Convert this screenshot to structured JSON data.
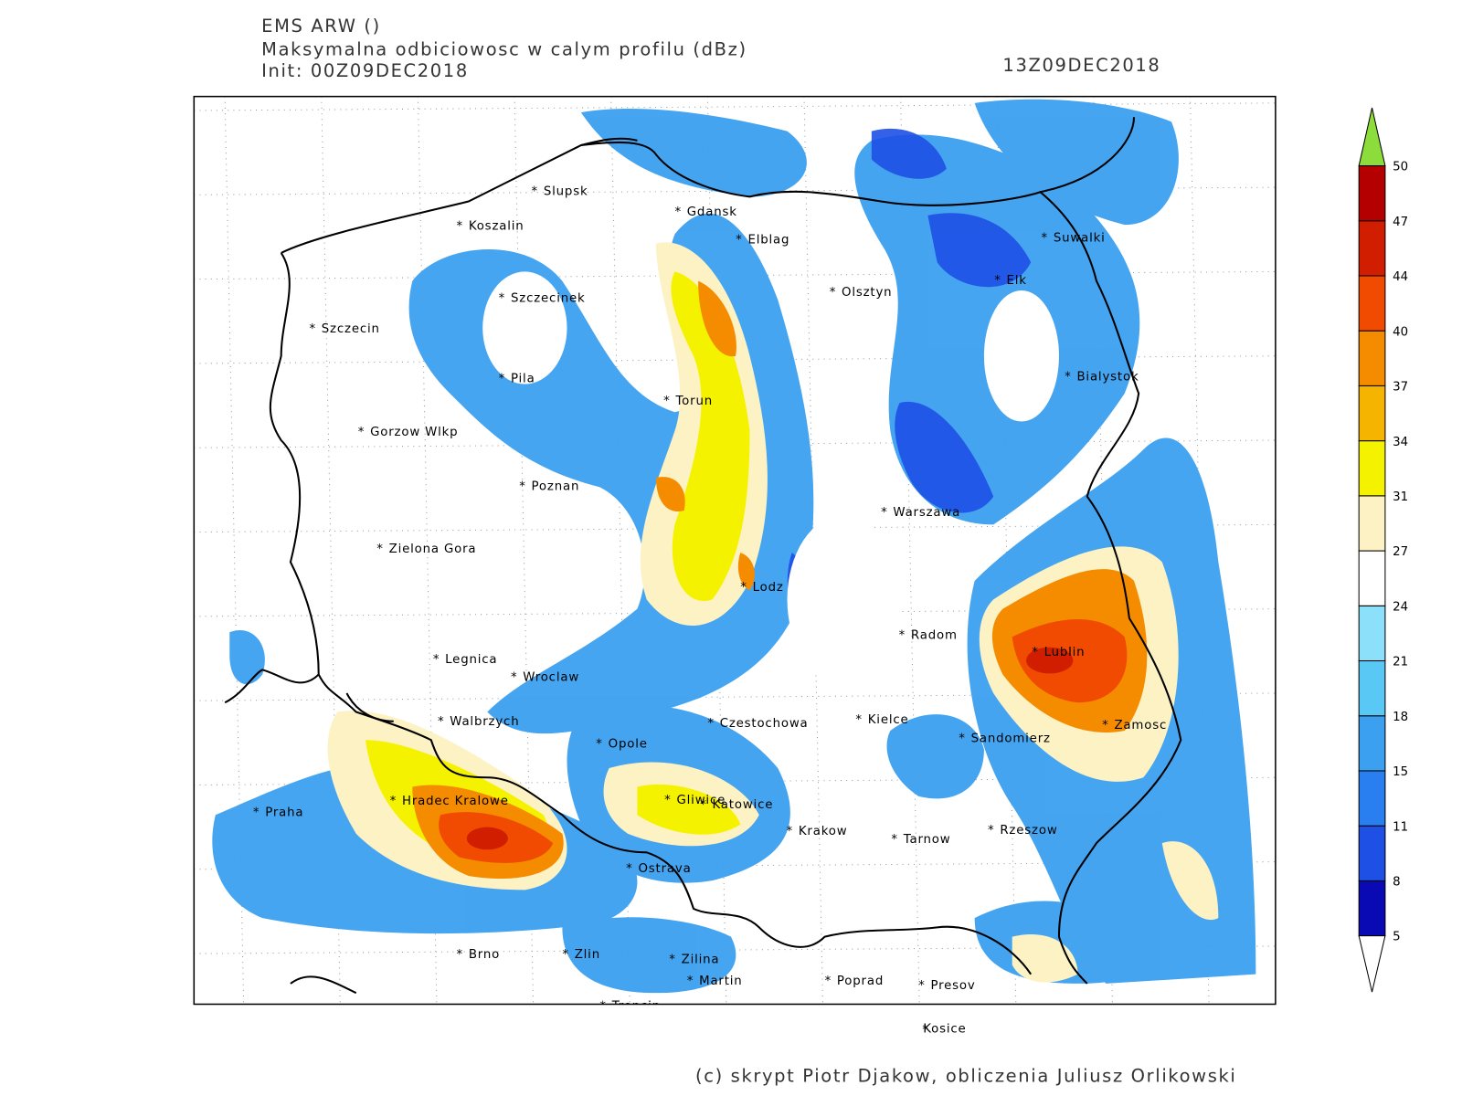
{
  "header": {
    "model": "EMS ARW ()",
    "field": "Maksymalna odbiciowosc w calym profilu (dBz)",
    "init": "Init: 00Z09DEC2018",
    "valid": "13Z09DEC2018"
  },
  "cities": [
    "Slupsk",
    "Koszalin",
    "Gdansk",
    "Elblag",
    "Szczecinek",
    "Olsztyn",
    "Suwalki",
    "Elk",
    "Szczecin",
    "Pila",
    "Torun",
    "Bialystok",
    "Gorzow Wlkp",
    "Poznan",
    "Warszawa",
    "Zielona Gora",
    "Lodz",
    "Radom",
    "Lublin",
    "Legnica",
    "Wroclaw",
    "Walbrzych",
    "Czestochowa",
    "Kielce",
    "Zamosc",
    "Opole",
    "Sandomierz",
    "Hradec Kralowe",
    "Praha",
    "Gliwice",
    "Katowice",
    "Krakow",
    "Tarnow",
    "Rzeszow",
    "Ostrava",
    "Brno",
    "Zlin",
    "Zilina",
    "Martin",
    "Poprad",
    "Presov",
    "Trencin",
    "Kosice"
  ],
  "colorbar": {
    "levels": [
      5,
      8,
      11,
      15,
      18,
      21,
      24,
      27,
      31,
      34,
      37,
      40,
      44,
      47,
      50
    ],
    "colors": [
      "#0a0ab4",
      "#1e50e6",
      "#2a7ff0",
      "#3ca0f0",
      "#5ac8f5",
      "#8ce0fa",
      "#ffffff",
      "#fcf2c4",
      "#f5f200",
      "#f5b400",
      "#f58c00",
      "#f04b00",
      "#d21e00",
      "#b40000"
    ],
    "under_color": "#ffffff",
    "over_color": "#8cdc3c"
  },
  "footer": "(c) skrypt Piotr Djakow, obliczenia Juliusz Orlikowski"
}
